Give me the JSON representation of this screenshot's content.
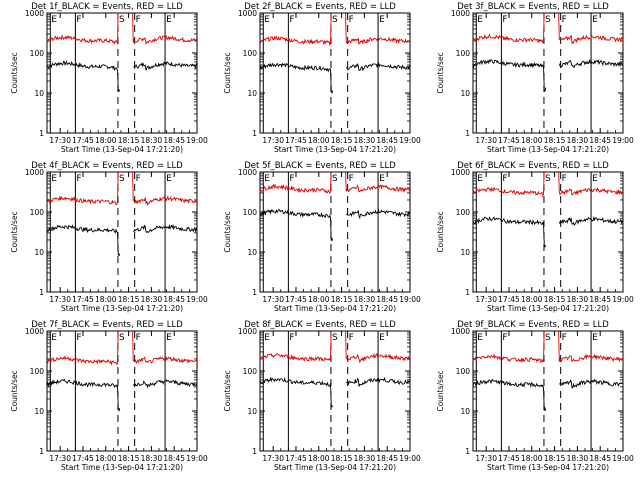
{
  "page": {
    "ylabel": "Counts/sec",
    "xlabel": "Start Time (13-Sep-04 17:21:20)",
    "xticks": [
      "17:30",
      "17:45",
      "18:00",
      "18:15",
      "18:30",
      "18:45",
      "19:00"
    ],
    "yticks": [
      "1",
      "10",
      "100",
      "1000"
    ],
    "marker_letters": [
      "E",
      "F",
      "S",
      "F",
      "E"
    ],
    "colors": {
      "events": "#000000",
      "lld": "#e00000",
      "axes": "#000000",
      "background": "#ffffff"
    }
  },
  "chart_data": [
    {
      "type": "line",
      "title": "Det 1f_BLACK = Events, RED = LLD",
      "yscale": "log",
      "ylim": [
        1,
        1000
      ],
      "xlim": [
        "17:21:20",
        "19:00"
      ],
      "series": [
        {
          "name": "Events",
          "level": 45
        },
        {
          "name": "LLD",
          "level": 200
        }
      ]
    },
    {
      "type": "line",
      "title": "Det 2f_BLACK = Events, RED = LLD",
      "yscale": "log",
      "ylim": [
        1,
        1000
      ],
      "xlim": [
        "17:21:20",
        "19:00"
      ],
      "series": [
        {
          "name": "Events",
          "level": 42
        },
        {
          "name": "LLD",
          "level": 190
        }
      ]
    },
    {
      "type": "line",
      "title": "Det 3f_BLACK = Events, RED = LLD",
      "yscale": "log",
      "ylim": [
        1,
        1000
      ],
      "xlim": [
        "17:21:20",
        "19:00"
      ],
      "series": [
        {
          "name": "Events",
          "level": 50
        },
        {
          "name": "LLD",
          "level": 210
        }
      ]
    },
    {
      "type": "line",
      "title": "Det 4f_BLACK = Events, RED = LLD",
      "yscale": "log",
      "ylim": [
        1,
        1000
      ],
      "xlim": [
        "17:21:20",
        "19:00"
      ],
      "series": [
        {
          "name": "Events",
          "level": 35
        },
        {
          "name": "LLD",
          "level": 180
        }
      ]
    },
    {
      "type": "line",
      "title": "Det 5f_BLACK = Events, RED = LLD",
      "yscale": "log",
      "ylim": [
        1,
        1000
      ],
      "xlim": [
        "17:21:20",
        "19:00"
      ],
      "series": [
        {
          "name": "Events",
          "level": 85
        },
        {
          "name": "LLD",
          "level": 350
        }
      ]
    },
    {
      "type": "line",
      "title": "Det 6f_BLACK = Events, RED = LLD",
      "yscale": "log",
      "ylim": [
        1,
        1000
      ],
      "xlim": [
        "17:21:20",
        "19:00"
      ],
      "series": [
        {
          "name": "Events",
          "level": 55
        },
        {
          "name": "LLD",
          "level": 300
        }
      ]
    },
    {
      "type": "line",
      "title": "Det 7f_BLACK = Events, RED = LLD",
      "yscale": "log",
      "ylim": [
        1,
        1000
      ],
      "xlim": [
        "17:21:20",
        "19:00"
      ],
      "series": [
        {
          "name": "Events",
          "level": 45
        },
        {
          "name": "LLD",
          "level": 170
        }
      ]
    },
    {
      "type": "line",
      "title": "Det 8f_BLACK = Events, RED = LLD",
      "yscale": "log",
      "ylim": [
        1,
        1000
      ],
      "xlim": [
        "17:21:20",
        "19:00"
      ],
      "series": [
        {
          "name": "Events",
          "level": 50
        },
        {
          "name": "LLD",
          "level": 200
        }
      ]
    },
    {
      "type": "line",
      "title": "Det 9f_BLACK = Events, RED = LLD",
      "yscale": "log",
      "ylim": [
        1,
        1000
      ],
      "xlim": [
        "17:21:20",
        "19:00"
      ],
      "series": [
        {
          "name": "Events",
          "level": 45
        },
        {
          "name": "LLD",
          "level": 190
        }
      ]
    }
  ]
}
